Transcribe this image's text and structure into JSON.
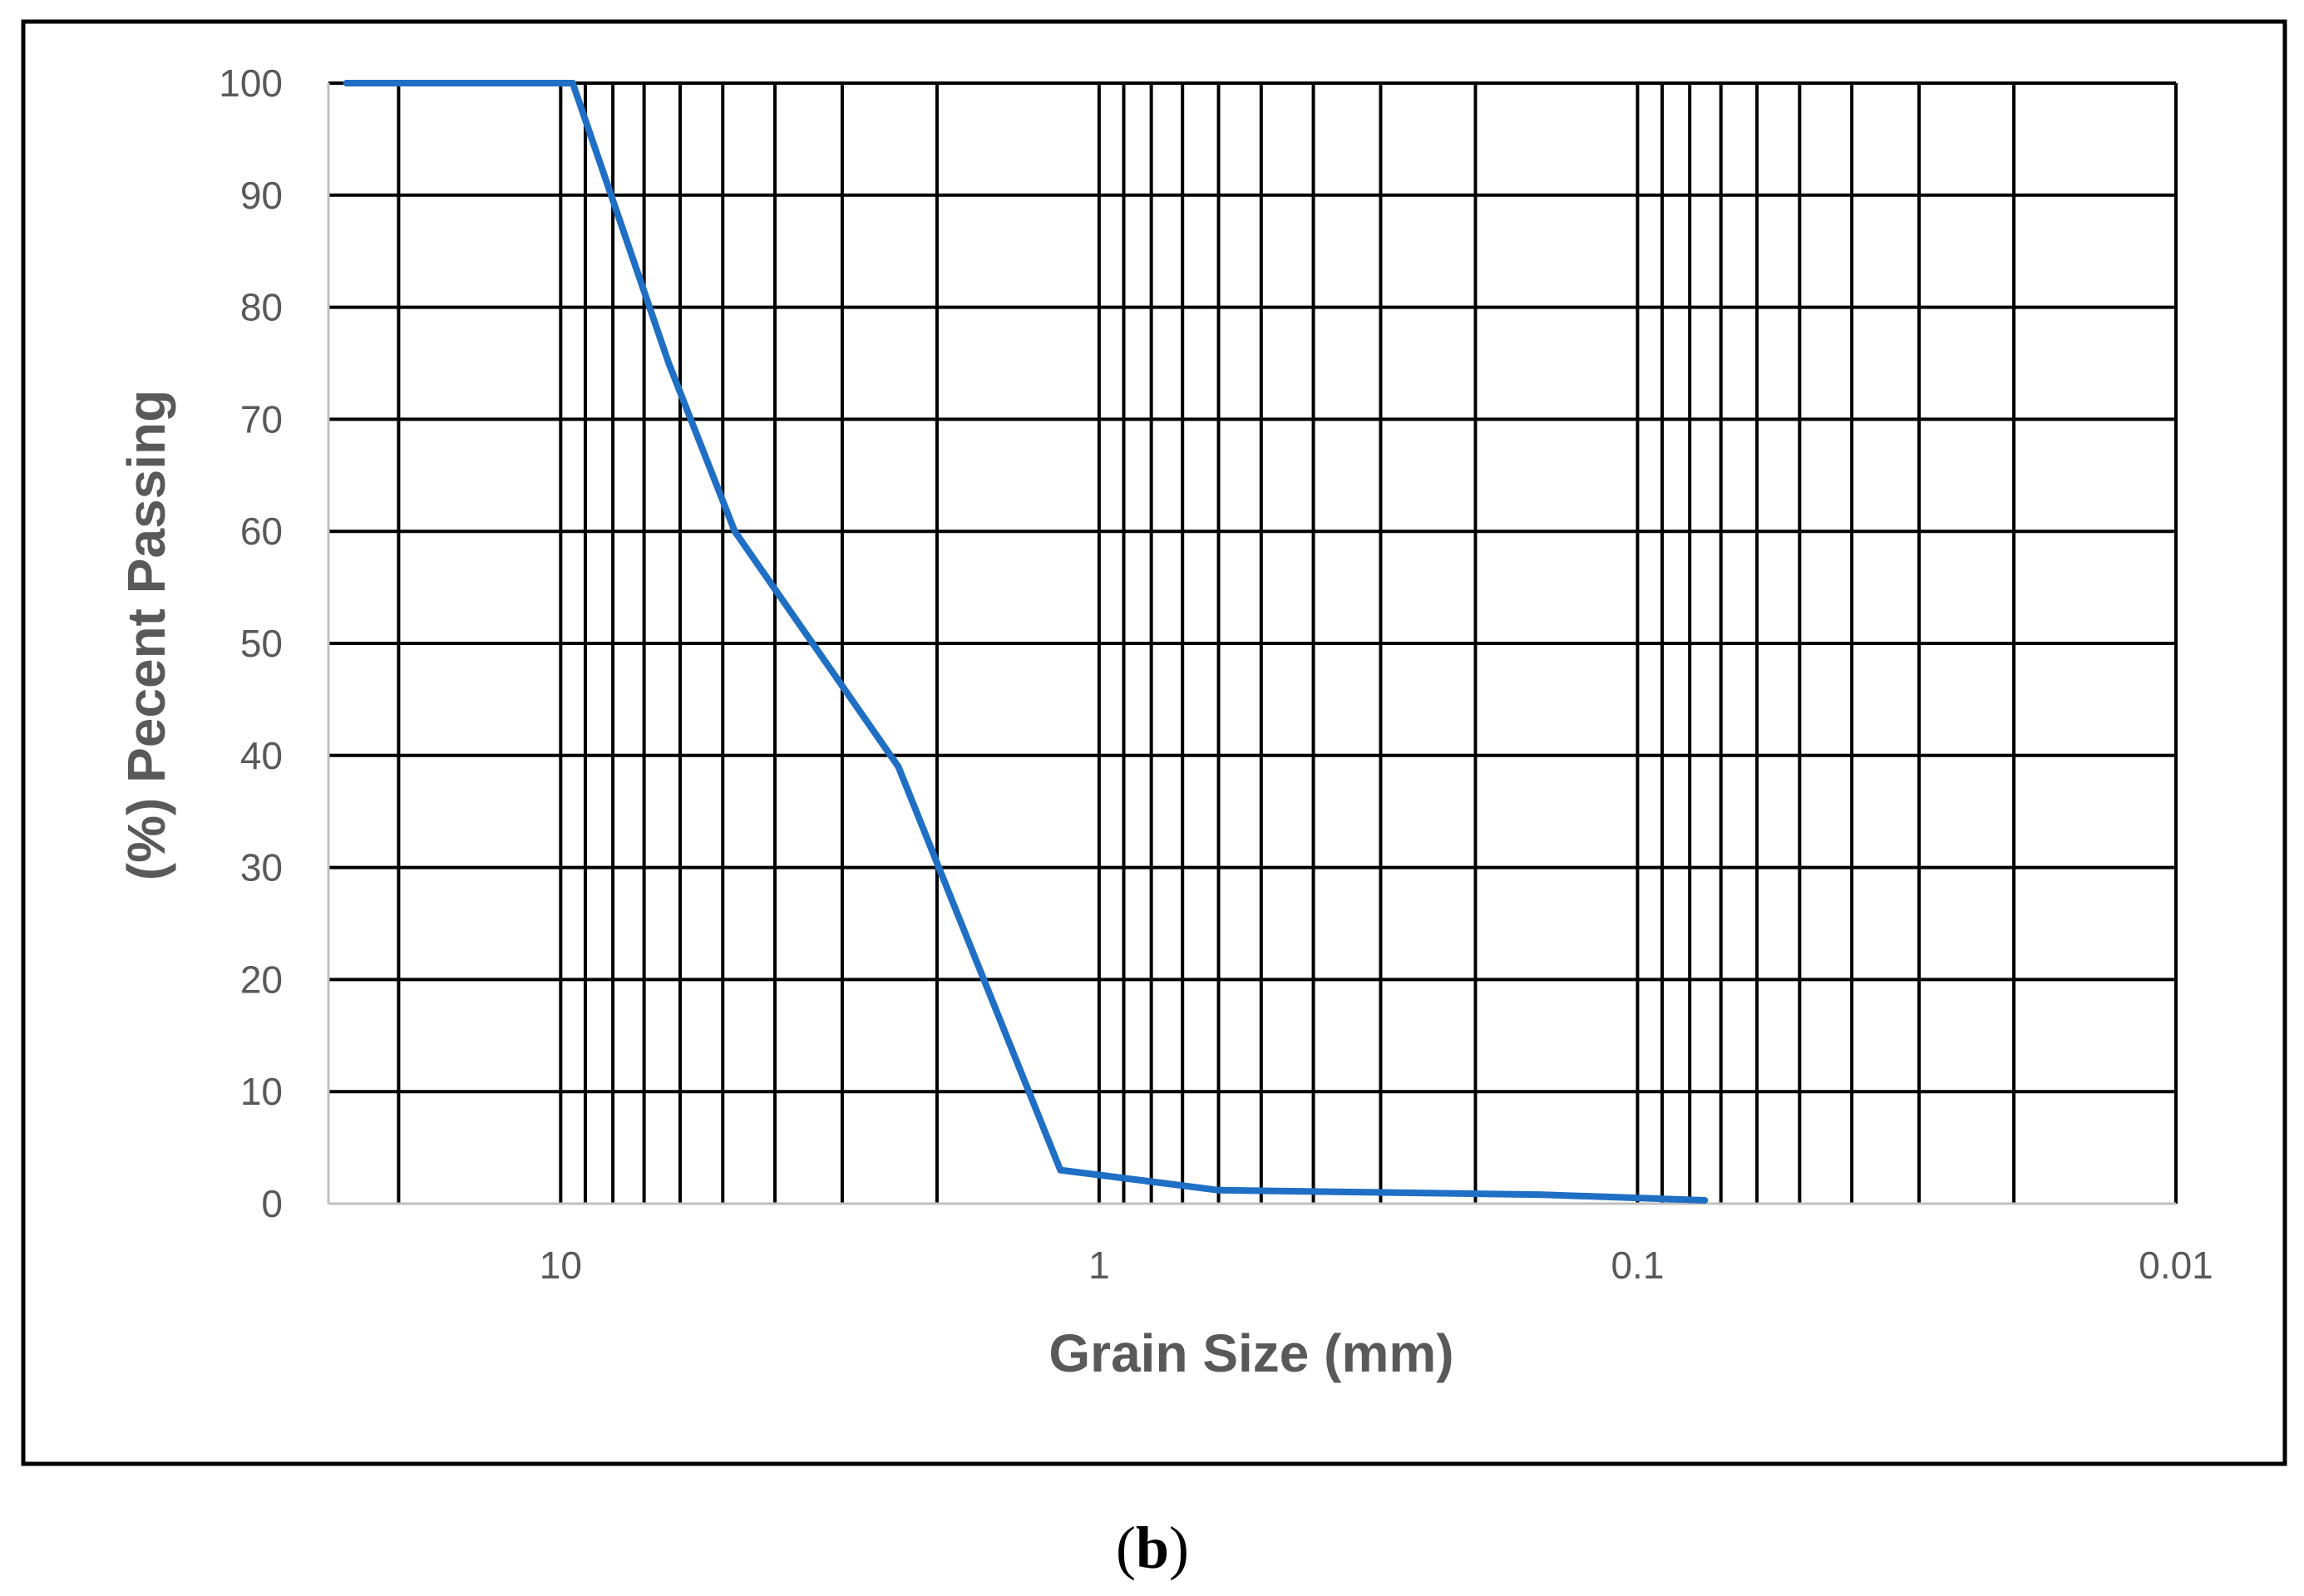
{
  "chart_data": {
    "type": "line",
    "title": "",
    "xlabel": "Grain Size (mm)",
    "ylabel": "(%) Pecent Passing",
    "x_scale": "log",
    "x_reversed": true,
    "xlim": [
      0.01,
      27
    ],
    "ylim": [
      0,
      100
    ],
    "x_ticks": [
      {
        "value": 10,
        "label": "10"
      },
      {
        "value": 1,
        "label": "1"
      },
      {
        "value": 0.1,
        "label": "0.1"
      },
      {
        "value": 0.01,
        "label": "0.01"
      }
    ],
    "y_ticks": [
      {
        "value": 0,
        "label": "0"
      },
      {
        "value": 10,
        "label": "10"
      },
      {
        "value": 20,
        "label": "20"
      },
      {
        "value": 30,
        "label": "30"
      },
      {
        "value": 40,
        "label": "40"
      },
      {
        "value": 50,
        "label": "50"
      },
      {
        "value": 60,
        "label": "60"
      },
      {
        "value": 70,
        "label": "70"
      },
      {
        "value": 80,
        "label": "80"
      },
      {
        "value": 90,
        "label": "90"
      },
      {
        "value": 100,
        "label": "100"
      }
    ],
    "grid_x_values": [
      20,
      10,
      9,
      8,
      7,
      6,
      5,
      4,
      3,
      2,
      1,
      0.9,
      0.8,
      0.7,
      0.6,
      0.5,
      0.4,
      0.3,
      0.2,
      0.1,
      0.09,
      0.08,
      0.07,
      0.06,
      0.05,
      0.04,
      0.03,
      0.02,
      0.01
    ],
    "grid_y_values": [
      10,
      20,
      30,
      40,
      50,
      60,
      70,
      80,
      90,
      100
    ],
    "grid": true,
    "legend": "none",
    "series": [
      {
        "color": "#1f6fc5",
        "x": [
          25,
          9.5,
          6.3,
          4.75,
          2.36,
          1.18,
          0.6,
          0.3,
          0.15,
          0.075
        ],
        "y": [
          100,
          100,
          75,
          60,
          39,
          3,
          1.2,
          1.0,
          0.8,
          0.3
        ]
      }
    ]
  },
  "caption": {
    "open": "(",
    "letter": "b",
    "close": ")"
  }
}
